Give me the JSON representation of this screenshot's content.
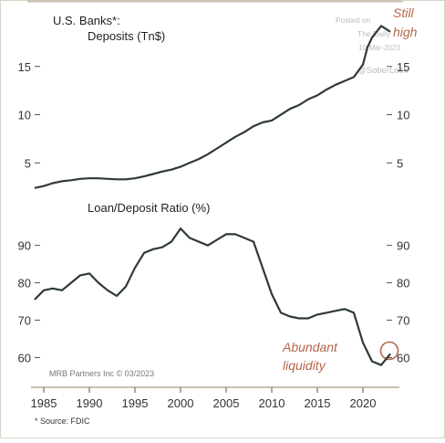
{
  "chart_data": [
    {
      "type": "line",
      "title_line1": "U.S. Banks*:",
      "title_line2": "Deposits (Tn$)",
      "ylim": [
        2,
        20
      ],
      "yticks": [
        5,
        10,
        15
      ],
      "x": [
        1984,
        1985,
        1986,
        1987,
        1988,
        1989,
        1990,
        1991,
        1992,
        1993,
        1994,
        1995,
        1996,
        1997,
        1998,
        1999,
        2000,
        2001,
        2002,
        2003,
        2004,
        2005,
        2006,
        2007,
        2008,
        2009,
        2010,
        2011,
        2012,
        2013,
        2014,
        2015,
        2016,
        2017,
        2018,
        2019,
        2020,
        2020.5,
        2021,
        2022,
        2022.5,
        2023
      ],
      "values": [
        2.4,
        2.6,
        2.9,
        3.1,
        3.2,
        3.35,
        3.4,
        3.4,
        3.35,
        3.3,
        3.3,
        3.4,
        3.6,
        3.85,
        4.1,
        4.3,
        4.6,
        5.0,
        5.4,
        5.9,
        6.5,
        7.1,
        7.7,
        8.2,
        8.8,
        9.2,
        9.4,
        10.0,
        10.6,
        11.0,
        11.6,
        12.0,
        12.6,
        13.1,
        13.5,
        13.9,
        15.2,
        17.0,
        18.0,
        19.2,
        18.9,
        18.6
      ],
      "annotation": "Still high",
      "annotation_color": "#b5654a"
    },
    {
      "type": "line",
      "title": "Loan/Deposit Ratio (%)",
      "ylim": [
        55,
        97
      ],
      "yticks": [
        60,
        70,
        80,
        90
      ],
      "x": [
        1984,
        1985,
        1986,
        1987,
        1988,
        1989,
        1990,
        1991,
        1992,
        1993,
        1994,
        1995,
        1996,
        1997,
        1998,
        1999,
        2000,
        2001,
        2002,
        2003,
        2004,
        2005,
        2006,
        2007,
        2008,
        2009,
        2010,
        2011,
        2012,
        2013,
        2014,
        2015,
        2016,
        2017,
        2018,
        2019,
        2020,
        2021,
        2022,
        2023
      ],
      "values": [
        75.5,
        78,
        78.5,
        78,
        80,
        82,
        82.5,
        80,
        78,
        76.5,
        79,
        84,
        88,
        89,
        89.5,
        91,
        94.5,
        92,
        91,
        90,
        91.5,
        93,
        93,
        92,
        91,
        84,
        77,
        72,
        71,
        70.5,
        70.5,
        71.5,
        72,
        72.5,
        73,
        72,
        64,
        59,
        58,
        61
      ],
      "annotation": "Abundant liquidity",
      "annotation_color": "#b5654a"
    }
  ],
  "x_ticks": [
    "1985",
    "1990",
    "1995",
    "2000",
    "2005",
    "2010",
    "2015",
    "2020"
  ],
  "credit": "MRB Partners Inc © 03/2023",
  "source_note": "* Source: FDIC",
  "watermark": {
    "line1": "Posted on",
    "line2": "The Daily",
    "line3": "10-Mar-2023",
    "line4": "@SoberLook"
  },
  "colors": {
    "line": "#2f3a34",
    "frame": "#c9bfae",
    "tick_text": "#333333",
    "watermark": "#b9bcc4"
  }
}
